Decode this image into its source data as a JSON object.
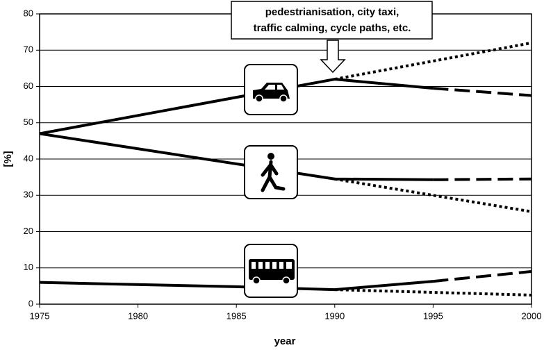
{
  "chart_data": {
    "type": "line",
    "x_label": "year",
    "y_label": "[%]",
    "xlim": [
      1975,
      2000
    ],
    "xticks": [
      1975,
      1980,
      1985,
      1990,
      1995,
      2000
    ],
    "ylim": [
      0,
      80
    ],
    "yticks": [
      0,
      10,
      20,
      30,
      40,
      50,
      60,
      70,
      80
    ],
    "grid": true,
    "annotation": [
      "pedestrianisation, city taxi,",
      "traffic calming, cycle paths, etc."
    ],
    "series": [
      {
        "color": "#000000",
        "style": "solid",
        "x": [
          1975,
          1990,
          1995
        ],
        "values": [
          47,
          62,
          59.5
        ]
      },
      {
        "color": "#000000",
        "style": "dashed",
        "x": [
          1995,
          2000
        ],
        "values": [
          59.5,
          57.5
        ]
      },
      {
        "color": "#000000",
        "style": "dotted",
        "x": [
          1990,
          2000
        ],
        "values": [
          62,
          72
        ]
      },
      {
        "color": "#000000",
        "style": "solid",
        "x": [
          1975,
          1990,
          1995
        ],
        "values": [
          47,
          34.5,
          34.3
        ]
      },
      {
        "color": "#000000",
        "style": "dashed",
        "x": [
          1995,
          2000
        ],
        "values": [
          34.3,
          34.5
        ]
      },
      {
        "color": "#000000",
        "style": "dotted",
        "x": [
          1990,
          2000
        ],
        "values": [
          34.5,
          25.5
        ]
      },
      {
        "color": "#000000",
        "style": "solid",
        "x": [
          1975,
          1985,
          1990,
          1995
        ],
        "values": [
          6,
          4.8,
          4,
          6.3
        ]
      },
      {
        "color": "#000000",
        "style": "dashed",
        "x": [
          1995,
          2000
        ],
        "values": [
          6.3,
          9
        ]
      },
      {
        "color": "#000000",
        "style": "dotted",
        "x": [
          1990,
          2000
        ],
        "values": [
          4,
          2.5
        ]
      }
    ]
  }
}
